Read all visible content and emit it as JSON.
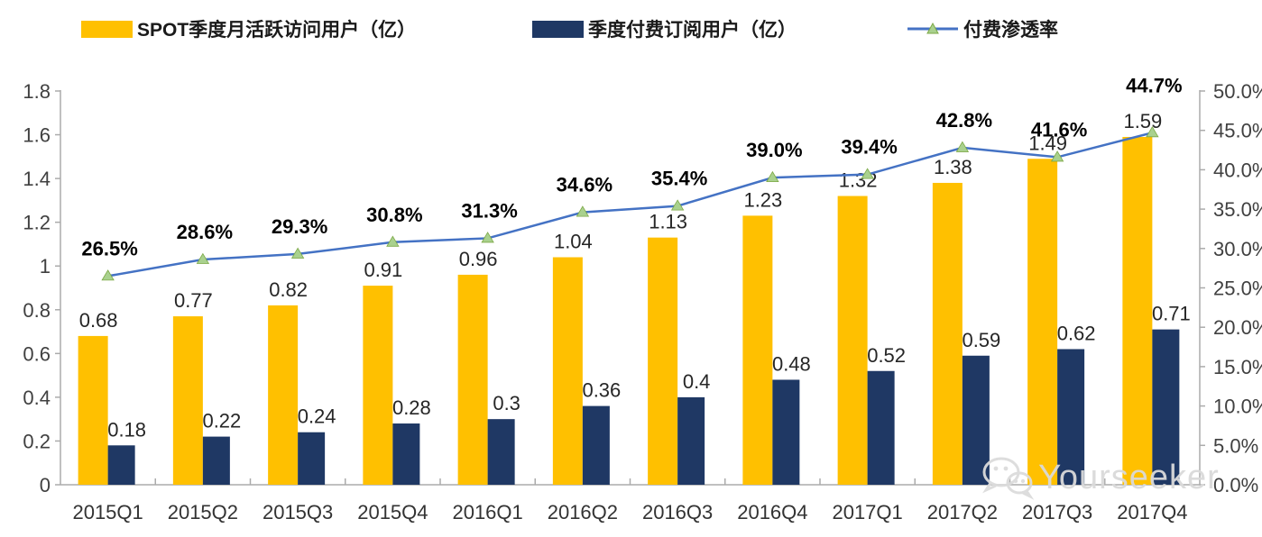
{
  "watermark": {
    "text": "Yourseeker"
  },
  "chart_data": {
    "type": "bar",
    "subtype": "combo-bar-line",
    "title": "",
    "legend_position": "top",
    "grid": false,
    "categories": [
      "2015Q1",
      "2015Q2",
      "2015Q3",
      "2015Q4",
      "2016Q1",
      "2016Q2",
      "2016Q3",
      "2016Q4",
      "2017Q1",
      "2017Q2",
      "2017Q3",
      "2017Q4"
    ],
    "series": [
      {
        "name": "SPOT季度月活跃访问用户（亿）",
        "type": "bar",
        "axis": "left",
        "color": "#FFC000",
        "values": [
          0.68,
          0.77,
          0.82,
          0.91,
          0.96,
          1.04,
          1.13,
          1.23,
          1.32,
          1.38,
          1.49,
          1.59
        ],
        "labels": [
          "0.68",
          "0.77",
          "0.82",
          "0.91",
          "0.96",
          "1.04",
          "1.13",
          "1.23",
          "1.32",
          "1.38",
          "1.49",
          "1.59"
        ]
      },
      {
        "name": "季度付费订阅用户（亿）",
        "type": "bar",
        "axis": "left",
        "color": "#1F3864",
        "values": [
          0.18,
          0.22,
          0.24,
          0.28,
          0.3,
          0.36,
          0.4,
          0.48,
          0.52,
          0.59,
          0.62,
          0.71
        ],
        "labels": [
          "0.18",
          "0.22",
          "0.24",
          "0.28",
          "0.3",
          "0.36",
          "0.4",
          "0.48",
          "0.52",
          "0.59",
          "0.62",
          "0.71"
        ]
      },
      {
        "name": "付费渗透率",
        "type": "line",
        "axis": "right",
        "color": "#4472C4",
        "marker": "triangle",
        "marker_color": "#A9D18E",
        "values": [
          26.5,
          28.6,
          29.3,
          30.8,
          31.3,
          34.6,
          35.4,
          39.0,
          39.4,
          42.8,
          41.6,
          44.7
        ],
        "labels": [
          "26.5%",
          "28.6%",
          "29.3%",
          "30.8%",
          "31.3%",
          "34.6%",
          "35.4%",
          "39.0%",
          "39.4%",
          "42.8%",
          "41.6%",
          "44.7%"
        ]
      }
    ],
    "left_axis": {
      "min": 0,
      "max": 1.8,
      "step": 0.2,
      "ticks": [
        "1.8",
        "1.6",
        "1.4",
        "1.2",
        "1",
        "0.8",
        "0.6",
        "0.4",
        "0.2",
        "0"
      ]
    },
    "right_axis": {
      "min": 0,
      "max": 50,
      "step": 5,
      "ticks": [
        "50.0%",
        "45.0%",
        "40.0%",
        "35.0%",
        "30.0%",
        "25.0%",
        "20.0%",
        "15.0%",
        "10.0%",
        "5.0%",
        "0.0%"
      ]
    },
    "colors": {
      "bar_mau": "#FFC000",
      "bar_subs": "#1F3864",
      "line": "#4472C4",
      "marker": "#A9D18E",
      "axis": "#ababab",
      "tick_text": "#404040",
      "data_label": "#262626",
      "pct_label": "#000000"
    }
  }
}
